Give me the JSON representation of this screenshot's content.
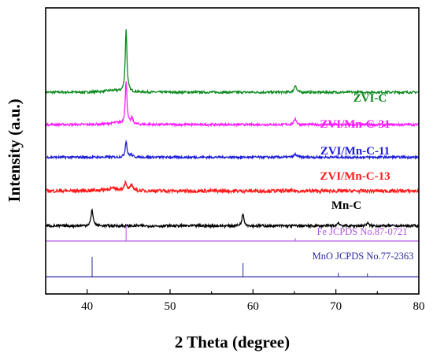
{
  "chart_data": {
    "type": "line",
    "xlabel": "2 Theta (degree)",
    "ylabel": "Intensity (a.u.)",
    "xlim": [
      35,
      80
    ],
    "xticks": [
      40,
      50,
      60,
      70,
      80
    ],
    "grid": false,
    "series": [
      {
        "name": "ZVI-C",
        "color": "#0a8a1e",
        "baseline": 0.705,
        "noise": 0.004,
        "peaks": [
          {
            "x": 44.7,
            "h": 0.22,
            "w": 0.12
          },
          {
            "x": 65.1,
            "h": 0.026,
            "w": 0.15
          },
          {
            "x": 43.0,
            "h": 0.006,
            "w": 1.2
          }
        ]
      },
      {
        "name": "ZVI/Mn-C-31",
        "color": "#ff1cff",
        "baseline": 0.592,
        "noise": 0.004,
        "peaks": [
          {
            "x": 44.7,
            "h": 0.15,
            "w": 0.12
          },
          {
            "x": 45.4,
            "h": 0.02,
            "w": 0.15
          },
          {
            "x": 65.1,
            "h": 0.022,
            "w": 0.15
          },
          {
            "x": 43.5,
            "h": 0.006,
            "w": 1.0
          }
        ]
      },
      {
        "name": "ZVI/Mn-C-11",
        "color": "#1c1cd8",
        "baseline": 0.478,
        "noise": 0.004,
        "peaks": [
          {
            "x": 44.7,
            "h": 0.058,
            "w": 0.12
          },
          {
            "x": 65.1,
            "h": 0.01,
            "w": 0.2
          },
          {
            "x": 45.3,
            "h": 0.008,
            "w": 0.2
          }
        ]
      },
      {
        "name": "ZVI/Mn-C-13",
        "color": "#ff1a1a",
        "baseline": 0.36,
        "noise": 0.006,
        "peaks": [
          {
            "x": 44.6,
            "h": 0.025,
            "w": 0.18
          },
          {
            "x": 45.4,
            "h": 0.02,
            "w": 0.18
          },
          {
            "x": 43.0,
            "h": 0.008,
            "w": 1.2
          }
        ]
      },
      {
        "name": "Mn-C",
        "color": "#000000",
        "baseline": 0.238,
        "noise": 0.0045,
        "peaks": [
          {
            "x": 40.6,
            "h": 0.055,
            "w": 0.15
          },
          {
            "x": 58.8,
            "h": 0.042,
            "w": 0.15
          },
          {
            "x": 70.3,
            "h": 0.012,
            "w": 0.15
          },
          {
            "x": 73.8,
            "h": 0.01,
            "w": 0.15
          }
        ]
      }
    ],
    "references": [
      {
        "name": "Fe JCPDS No.87-0721",
        "color": "#b052e6",
        "baseline": 0.185,
        "lines": [
          {
            "x": 44.7,
            "h": 0.055
          },
          {
            "x": 65.1,
            "h": 0.01
          }
        ]
      },
      {
        "name": "MnO JCPDS No.77-2363",
        "color": "#2a2a9e",
        "baseline": 0.06,
        "lines": [
          {
            "x": 40.6,
            "h": 0.07
          },
          {
            "x": 58.8,
            "h": 0.048
          },
          {
            "x": 70.3,
            "h": 0.014
          },
          {
            "x": 73.8,
            "h": 0.012
          }
        ]
      }
    ]
  }
}
